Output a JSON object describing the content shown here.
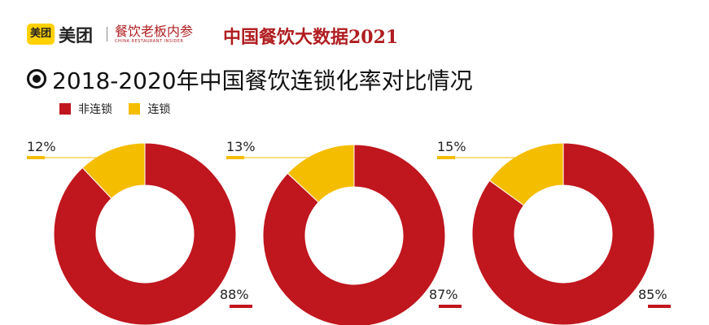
{
  "header": {
    "logo_text": "美团",
    "brand": "美团",
    "sub_brand": "餐饮老板内参",
    "sub_brand_en": "CHINA RESTAURANT INSIDER",
    "report_title": "中国餐饮大数据2021"
  },
  "colors": {
    "non_chain": "#c0161e",
    "chain": "#f5bd00",
    "accent": "#b01d20"
  },
  "chart_data": {
    "type": "pie",
    "title": "2018-2020年中国餐饮连锁化率对比情况",
    "legend": [
      "非连锁",
      "连锁"
    ],
    "legend_position": "top-left",
    "charts": [
      {
        "slices": [
          {
            "name": "非连锁",
            "value": 88,
            "label": "88%"
          },
          {
            "name": "连锁",
            "value": 12,
            "label": "12%"
          }
        ]
      },
      {
        "slices": [
          {
            "name": "非连锁",
            "value": 87,
            "label": "87%"
          },
          {
            "name": "连锁",
            "value": 13,
            "label": "13%"
          }
        ]
      },
      {
        "slices": [
          {
            "name": "非连锁",
            "value": 85,
            "label": "85%"
          },
          {
            "name": "连锁",
            "value": 15,
            "label": "15%"
          }
        ]
      }
    ]
  }
}
